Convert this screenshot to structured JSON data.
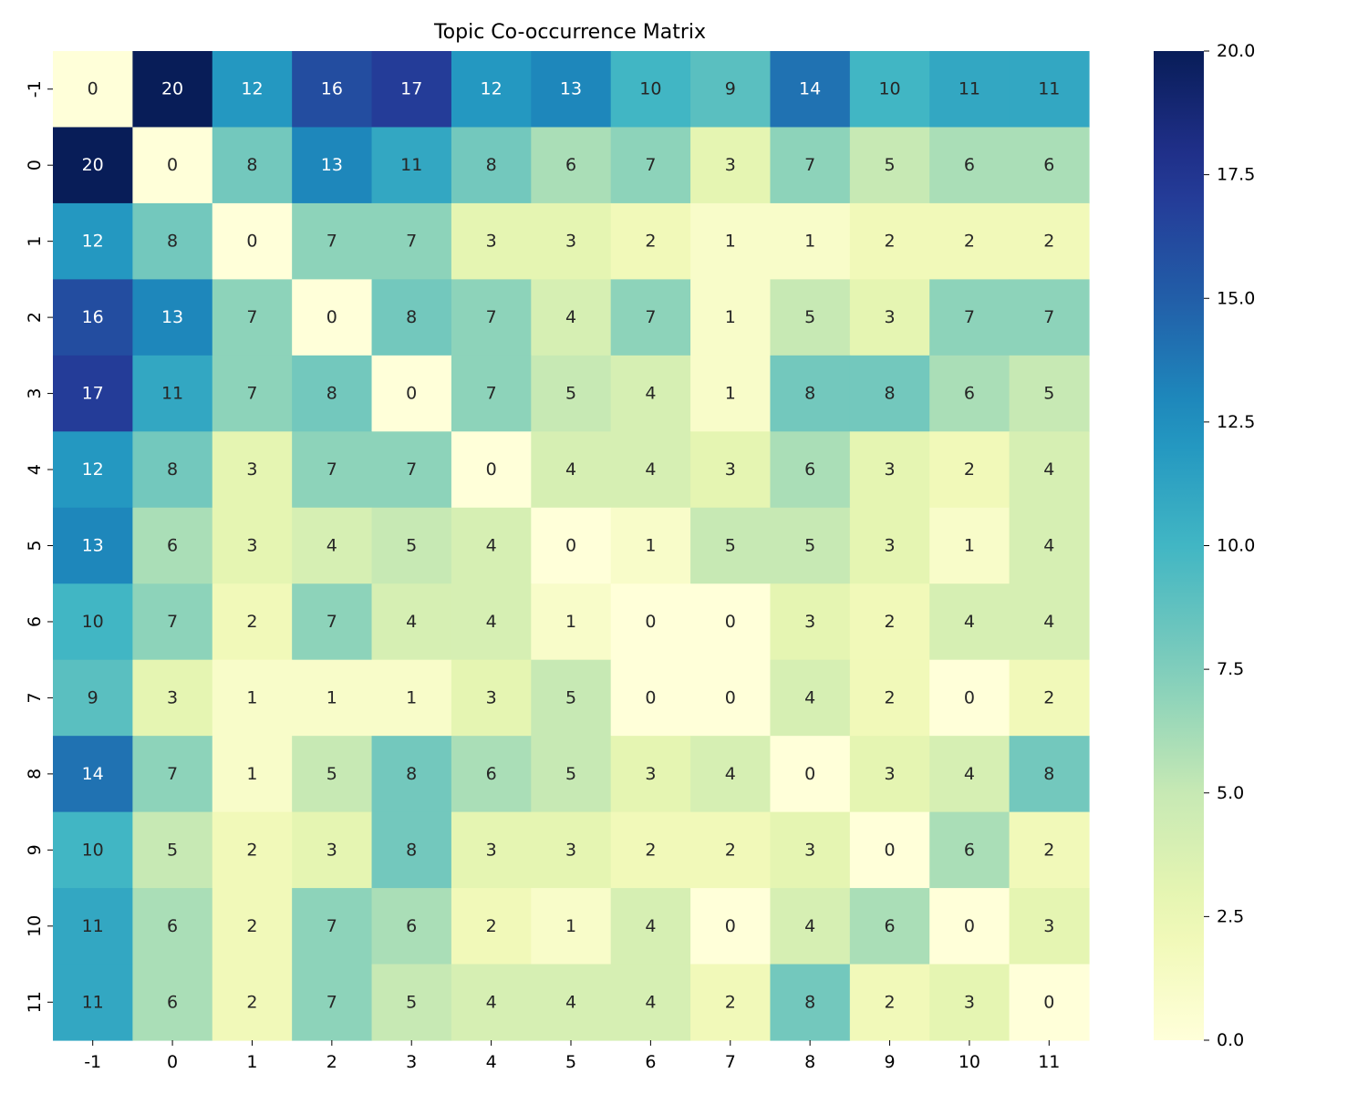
{
  "chart_data": {
    "type": "heatmap",
    "title": "Topic Co-occurrence Matrix",
    "xlabel": "",
    "ylabel": "",
    "x_categories": [
      "-1",
      "0",
      "1",
      "2",
      "3",
      "4",
      "5",
      "6",
      "7",
      "8",
      "9",
      "10",
      "11"
    ],
    "y_categories": [
      "-1",
      "0",
      "1",
      "2",
      "3",
      "4",
      "5",
      "6",
      "7",
      "8",
      "9",
      "10",
      "11"
    ],
    "values": [
      [
        0,
        20,
        12,
        16,
        17,
        12,
        13,
        10,
        9,
        14,
        10,
        11,
        11
      ],
      [
        20,
        0,
        8,
        13,
        11,
        8,
        6,
        7,
        3,
        7,
        5,
        6,
        6
      ],
      [
        12,
        8,
        0,
        7,
        7,
        3,
        3,
        2,
        1,
        1,
        2,
        2,
        2
      ],
      [
        16,
        13,
        7,
        0,
        8,
        7,
        4,
        7,
        1,
        5,
        3,
        7,
        7
      ],
      [
        17,
        11,
        7,
        8,
        0,
        7,
        5,
        4,
        1,
        8,
        8,
        6,
        5
      ],
      [
        12,
        8,
        3,
        7,
        7,
        0,
        4,
        4,
        3,
        6,
        3,
        2,
        4
      ],
      [
        13,
        6,
        3,
        4,
        5,
        4,
        0,
        1,
        5,
        5,
        3,
        1,
        4
      ],
      [
        10,
        7,
        2,
        7,
        4,
        4,
        1,
        0,
        0,
        3,
        2,
        4,
        4
      ],
      [
        9,
        3,
        1,
        1,
        1,
        3,
        5,
        0,
        0,
        4,
        2,
        0,
        2
      ],
      [
        14,
        7,
        1,
        5,
        8,
        6,
        5,
        3,
        4,
        0,
        3,
        4,
        8
      ],
      [
        10,
        5,
        2,
        3,
        8,
        3,
        3,
        2,
        2,
        3,
        0,
        6,
        2
      ],
      [
        11,
        6,
        2,
        7,
        6,
        2,
        1,
        4,
        0,
        4,
        6,
        0,
        3
      ],
      [
        11,
        6,
        2,
        7,
        5,
        4,
        4,
        4,
        2,
        8,
        2,
        3,
        0
      ]
    ],
    "colormap": "YlGnBu",
    "vmin": 0,
    "vmax": 20,
    "colorbar_ticks": [
      "0.0",
      "2.5",
      "5.0",
      "7.5",
      "10.0",
      "12.5",
      "15.0",
      "17.5",
      "20.0"
    ],
    "annotations": true
  }
}
